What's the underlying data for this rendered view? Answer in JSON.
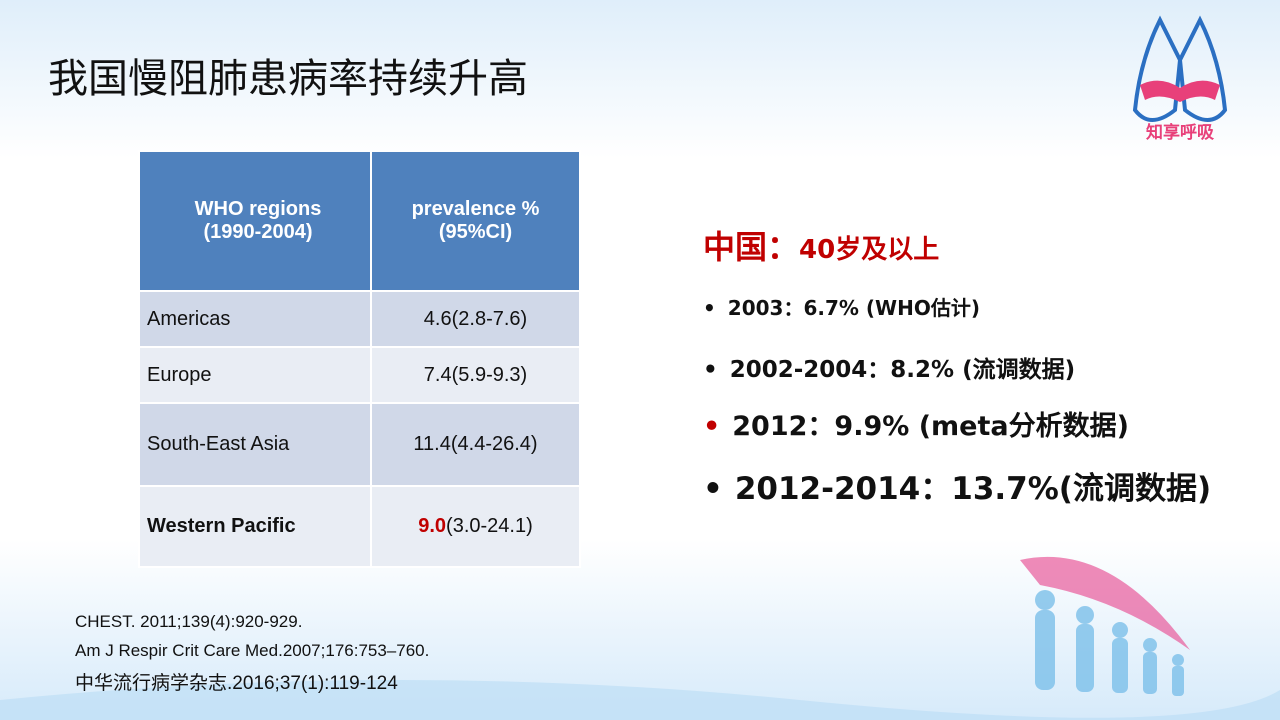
{
  "header": {
    "title": "我国慢阻肺患病率持续升高",
    "logo_text": "知享呼吸"
  },
  "table": {
    "header": [
      [
        "WHO regions",
        "(1990-2004)"
      ],
      [
        "prevalence %",
        "(95%CI)"
      ]
    ],
    "rows": [
      [
        "Americas",
        "4.6(2.8-7.6)"
      ],
      [
        "Europe",
        "7.4(5.9-9.3)"
      ],
      [
        "South-East Asia",
        "11.4(4.4-26.4)"
      ],
      [
        "Western Pacific",
        {
          "highlight": "9.0",
          "rest": "(3.0-24.1)"
        }
      ]
    ]
  },
  "summary": {
    "heading": {
      "region": "中国：",
      "scope": "40岁及以上"
    },
    "bullets": [
      "2003：6.7% (WHO估计)",
      "2002-2004：8.2% (流调数据)",
      "2012：9.9% (meta分析数据)",
      "2012-2014：13.7%(流调数据)"
    ]
  },
  "references": [
    "CHEST. 2011;139(4):920-929.",
    "Am J Respir Crit Care Med.2007;176:753–760.",
    "中华流行病学杂志.2016;37(1):119-124"
  ]
}
